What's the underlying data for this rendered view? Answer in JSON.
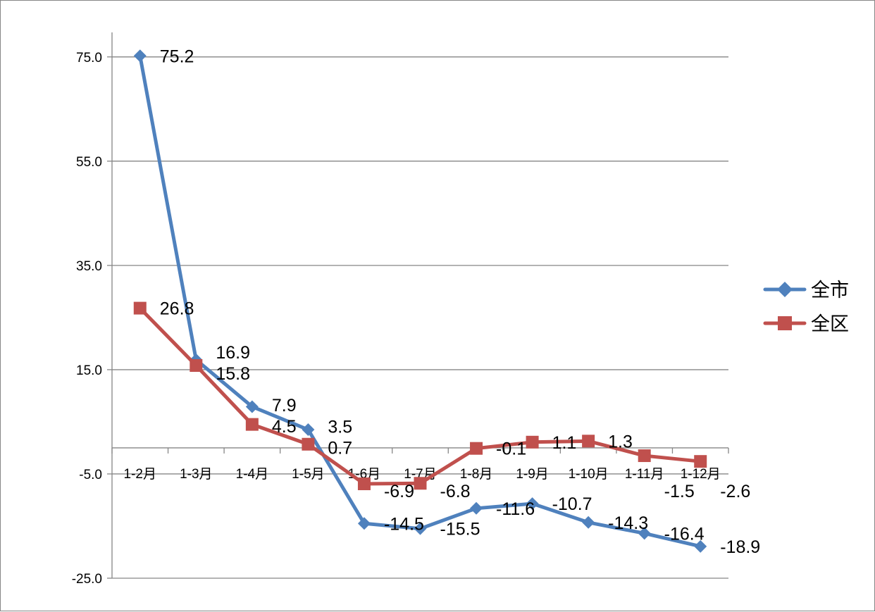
{
  "chart_data": {
    "type": "line",
    "title": "",
    "xlabel": "",
    "ylabel": "",
    "categories": [
      "1-2月",
      "1-3月",
      "1-4月",
      "1-5月",
      "1-6月",
      "1-7月",
      "1-8月",
      "1-9月",
      "1-10月",
      "1-11月",
      "1-12月"
    ],
    "series": [
      {
        "name": "全市",
        "color": "#4F81BD",
        "marker": "diamond",
        "values": [
          75.2,
          16.9,
          7.9,
          3.5,
          -14.5,
          -15.5,
          -11.6,
          -10.7,
          -14.3,
          -16.4,
          -18.9
        ],
        "labels": [
          "75.2",
          "16.9",
          "7.9",
          "3.5",
          "-14.5",
          "-15.5",
          "-11.6",
          "-10.7",
          "-14.3",
          "-16.4",
          "-18.9"
        ]
      },
      {
        "name": "全区",
        "color": "#C0504D",
        "marker": "square",
        "values": [
          26.8,
          15.8,
          4.5,
          0.7,
          -6.9,
          -6.8,
          -0.1,
          1.1,
          1.3,
          -1.5,
          -2.6
        ],
        "labels": [
          "26.8",
          "15.8",
          "4.5",
          "0.7",
          "-6.9",
          "-6.8",
          "-0.1",
          "1.1",
          "1.3",
          "-1.5",
          "-2.6"
        ]
      }
    ],
    "yticks": [
      "75.0",
      "55.0",
      "35.0",
      "15.0",
      "-5.0",
      "-25.0"
    ],
    "ytick_values": [
      75,
      55,
      35,
      15,
      -5,
      -25
    ],
    "ylim": [
      -25,
      79.7
    ],
    "grid": true,
    "legend_position": "right"
  }
}
